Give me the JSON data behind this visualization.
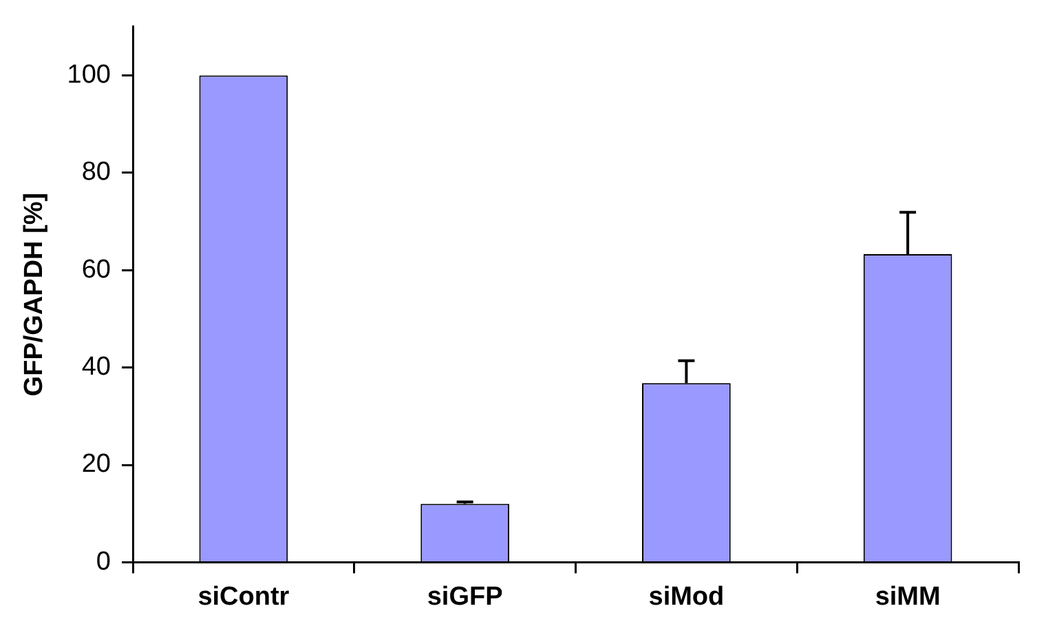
{
  "chart_data": {
    "type": "bar",
    "ylabel": "GFP/GAPDH [%]",
    "categories": [
      "siContr",
      "siGFP",
      "siMod",
      "siMM"
    ],
    "values": [
      100,
      12,
      36.8,
      63.3
    ],
    "errors": [
      null,
      0.4,
      4.6,
      8.6
    ],
    "color": "#9999ff",
    "ylim": [
      0,
      110
    ],
    "yticks": [
      0,
      20,
      40,
      60,
      80,
      100
    ],
    "grid": false,
    "legend": false
  }
}
